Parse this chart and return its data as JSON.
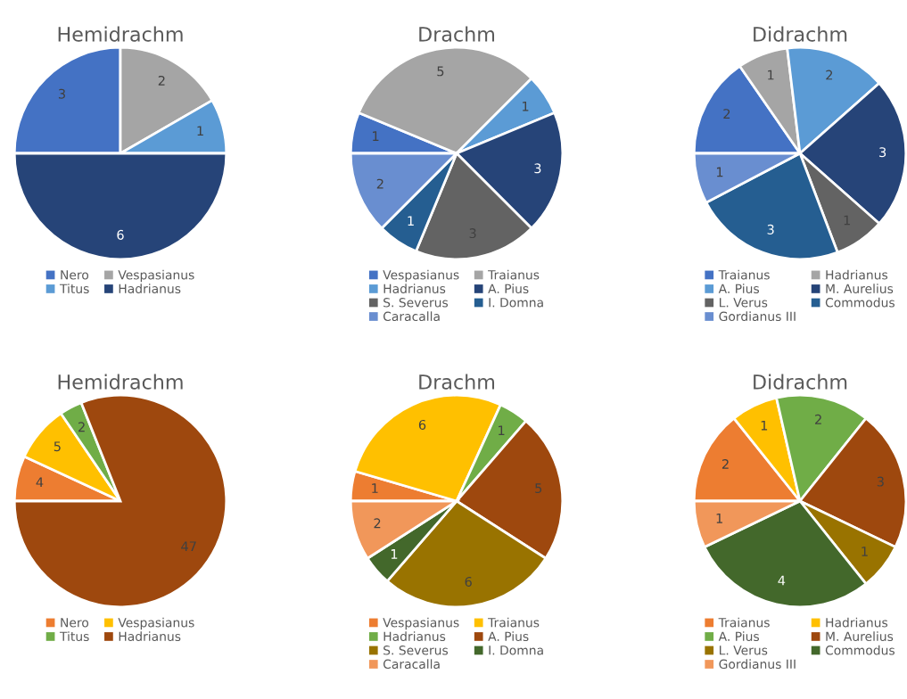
{
  "chart_data": [
    {
      "type": "pie",
      "title": "Hemidrachm",
      "categories": [
        "Nero",
        "Vespasianus",
        "Titus",
        "Hadrianus"
      ],
      "values": [
        3,
        2,
        1,
        6
      ],
      "colors": [
        "#4472c4",
        "#a5a5a5",
        "#5b9bd5",
        "#264478"
      ],
      "data_labels": true,
      "legend": "bottom"
    },
    {
      "type": "pie",
      "title": "Drachm",
      "categories": [
        "Vespasianus",
        "Traianus",
        "Hadrianus",
        "A. Pius",
        "S. Severus",
        "I. Domna",
        "Caracalla"
      ],
      "values": [
        1,
        5,
        1,
        3,
        3,
        1,
        2
      ],
      "colors": [
        "#4472c4",
        "#a5a5a5",
        "#5b9bd5",
        "#264478",
        "#636363",
        "#255e91",
        "#698ed0"
      ],
      "data_labels": true,
      "legend": "bottom"
    },
    {
      "type": "pie",
      "title": "Didrachm",
      "categories": [
        "Traianus",
        "Hadrianus",
        "A. Pius",
        "M. Aurelius",
        "L. Verus",
        "Commodus",
        "Gordianus III"
      ],
      "values": [
        2,
        1,
        2,
        3,
        1,
        3,
        1
      ],
      "colors": [
        "#4472c4",
        "#a5a5a5",
        "#5b9bd5",
        "#264478",
        "#636363",
        "#255e91",
        "#698ed0"
      ],
      "data_labels": true,
      "legend": "bottom"
    },
    {
      "type": "pie",
      "title": "Hemidrachm",
      "categories": [
        "Nero",
        "Vespasianus",
        "Titus",
        "Hadrianus"
      ],
      "values": [
        4,
        5,
        2,
        47
      ],
      "colors": [
        "#ed7d31",
        "#ffc000",
        "#70ad47",
        "#9e480e"
      ],
      "data_labels": true,
      "legend": "bottom"
    },
    {
      "type": "pie",
      "title": "Drachm",
      "categories": [
        "Vespasianus",
        "Traianus",
        "Hadrianus",
        "A. Pius",
        "S. Severus",
        "I. Domna",
        "Caracalla"
      ],
      "values": [
        1,
        6,
        1,
        5,
        6,
        1,
        2
      ],
      "colors": [
        "#ed7d31",
        "#ffc000",
        "#70ad47",
        "#9e480e",
        "#997300",
        "#43682b",
        "#f1975a"
      ],
      "data_labels": true,
      "legend": "bottom"
    },
    {
      "type": "pie",
      "title": "Didrachm",
      "categories": [
        "Traianus",
        "Hadrianus",
        "A. Pius",
        "M. Aurelius",
        "L. Verus",
        "Commodus",
        "Gordianus III"
      ],
      "values": [
        2,
        1,
        2,
        3,
        1,
        4,
        1
      ],
      "colors": [
        "#ed7d31",
        "#ffc000",
        "#70ad47",
        "#9e480e",
        "#997300",
        "#43682b",
        "#f1975a"
      ],
      "data_labels": true,
      "legend": "bottom"
    }
  ]
}
